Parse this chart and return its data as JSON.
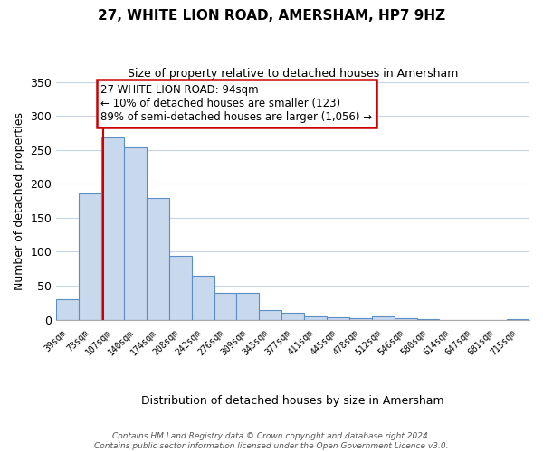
{
  "title": "27, WHITE LION ROAD, AMERSHAM, HP7 9HZ",
  "subtitle": "Size of property relative to detached houses in Amersham",
  "xlabel": "Distribution of detached houses by size in Amersham",
  "ylabel": "Number of detached properties",
  "bar_labels": [
    "39sqm",
    "73sqm",
    "107sqm",
    "140sqm",
    "174sqm",
    "208sqm",
    "242sqm",
    "276sqm",
    "309sqm",
    "343sqm",
    "377sqm",
    "411sqm",
    "445sqm",
    "478sqm",
    "512sqm",
    "546sqm",
    "580sqm",
    "614sqm",
    "647sqm",
    "681sqm",
    "715sqm"
  ],
  "bar_values": [
    30,
    186,
    268,
    253,
    179,
    94,
    65,
    40,
    39,
    14,
    10,
    5,
    4,
    2,
    5,
    2,
    1,
    0,
    0,
    0,
    1
  ],
  "bar_face_color": "#c8d9ee",
  "bar_edge_color": "#5b8ec4",
  "vline_x_index": 1.57,
  "vline_color": "#cc0000",
  "annotation_text": "27 WHITE LION ROAD: 94sqm\n← 10% of detached houses are smaller (123)\n89% of semi-detached houses are larger (1,056) →",
  "annotation_box_color": "#ffffff",
  "annotation_box_edge": "#cc0000",
  "ylim": [
    0,
    350
  ],
  "yticks": [
    0,
    50,
    100,
    150,
    200,
    250,
    300,
    350
  ],
  "footnote": "Contains HM Land Registry data © Crown copyright and database right 2024.\nContains public sector information licensed under the Open Government Licence v3.0.",
  "background_color": "#ffffff",
  "grid_color": "#c8d4e8"
}
